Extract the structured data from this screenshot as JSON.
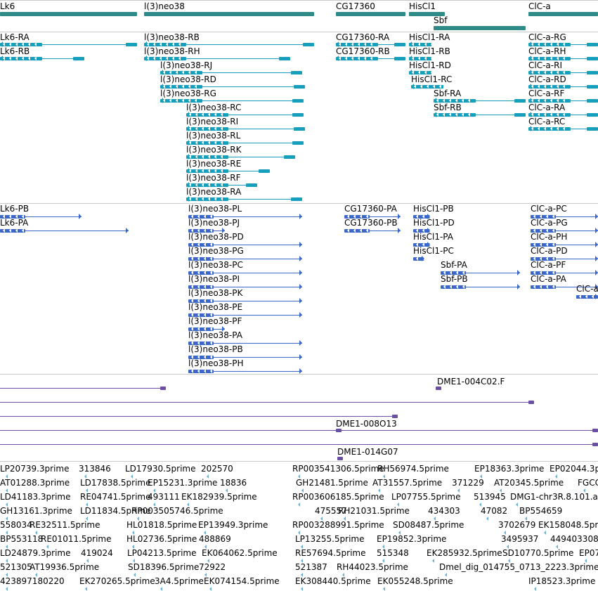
{
  "colors": {
    "gene": "#2e8b88",
    "transcript": "#159fbd",
    "protein": "#3b68c8",
    "clone": "#6a4fa5",
    "est": "#6bb1dc",
    "separator": "#c9c9c9"
  },
  "genes": [
    "Lk6",
    "l(3)neo38",
    "CG17360",
    "HisCl1",
    "Sbf",
    "ClC-a"
  ],
  "transcripts": [
    "Lk6-RA",
    "Lk6-RB",
    "l(3)neo38-RB",
    "l(3)neo38-RH",
    "l(3)neo38-RJ",
    "l(3)neo38-RD",
    "l(3)neo38-RG",
    "l(3)neo38-RC",
    "l(3)neo38-RI",
    "l(3)neo38-RL",
    "l(3)neo38-RK",
    "l(3)neo38-RE",
    "l(3)neo38-RF",
    "l(3)neo38-RA",
    "CG17360-RA",
    "CG17360-RB",
    "HisCl1-RA",
    "HisCl1-RB",
    "HisCl1-RD",
    "HisCl1-RC",
    "Sbf-RA",
    "Sbf-RB",
    "ClC-a-RG",
    "ClC-a-RH",
    "ClC-a-RI",
    "ClC-a-RD",
    "ClC-a-RF",
    "ClC-a-RA",
    "ClC-a-RC"
  ],
  "proteins": [
    "Lk6-PB",
    "Lk6-PA",
    "l(3)neo38-PL",
    "l(3)neo38-PJ",
    "l(3)neo38-PD",
    "l(3)neo38-PG",
    "l(3)neo38-PC",
    "l(3)neo38-PI",
    "l(3)neo38-PK",
    "l(3)neo38-PE",
    "l(3)neo38-PF",
    "l(3)neo38-PA",
    "l(3)neo38-PB",
    "l(3)neo38-PH",
    "CG17360-PA",
    "CG17360-PB",
    "HisCl1-PB",
    "HisCl1-PD",
    "HisCl1-PA",
    "HisCl1-PC",
    "Sbf-PA",
    "Sbf-PB",
    "ClC-a-PC",
    "ClC-a-PG",
    "ClC-a-PH",
    "ClC-a-PD",
    "ClC-a-PF",
    "ClC-a-PA",
    "ClC-a"
  ],
  "clones": [
    "DME1-004C02.F",
    "DME1-008O13",
    "DME1-014G07"
  ],
  "ests": [
    "LP20739.3prime",
    "313846",
    "LD17930.5prime",
    "202570",
    "RP003541306.5prime",
    "RH56974.5prime",
    "EP18363.3prime",
    "EP02044.3p",
    "AT01288.3prime",
    "LD17838.5prime",
    "EP15231.3prime",
    "18836",
    "GH21481.5prime",
    "AT31557.5prime",
    "371229",
    "AT20345.5prime",
    "FGCC",
    "LD41183.3prime",
    "RE04741.5prime",
    "493111",
    "EK182939.5prime",
    "RP003606185.5prime",
    "LP07755.5prime",
    "513945",
    "DMG1-chr3R.8.101.a",
    "GH13161.3prime",
    "LD11834.5prime",
    "RP003505746.5prime",
    "475557",
    "RH21031.5prime",
    "434303",
    "47082",
    "BP554659",
    "558034",
    "RE32511.5prime",
    "HL01818.5prime",
    "EP13949.3prime",
    "RP003288991.5prime",
    "SD08487.5prime",
    "3702679",
    "EK158048.5prime",
    "BP553118",
    "RE01011.5prime",
    "HL02736.5prime",
    "488869",
    "LP13255.5prime",
    "EP19852.3prime",
    "3495937",
    "449403308",
    "LD24879.3prime",
    "419024",
    "LP04213.5prime",
    "EK064062.5prime",
    "RE57694.5prime",
    "515348",
    "EK285932.5prime",
    "SD10770.5prime",
    "EP07",
    "521305",
    "AT19936.5prime",
    "SD18396.5prime",
    "72922",
    "521387",
    "RH44023.5prime",
    "Dmel_dig_014755_0713_2223.3prime",
    "423897180220",
    "EK270265.5prime",
    "3A4.5prime",
    "EK074154.5prime",
    "EK308440.5prime",
    "EK055248.5prime",
    "IP18523.3prime"
  ]
}
